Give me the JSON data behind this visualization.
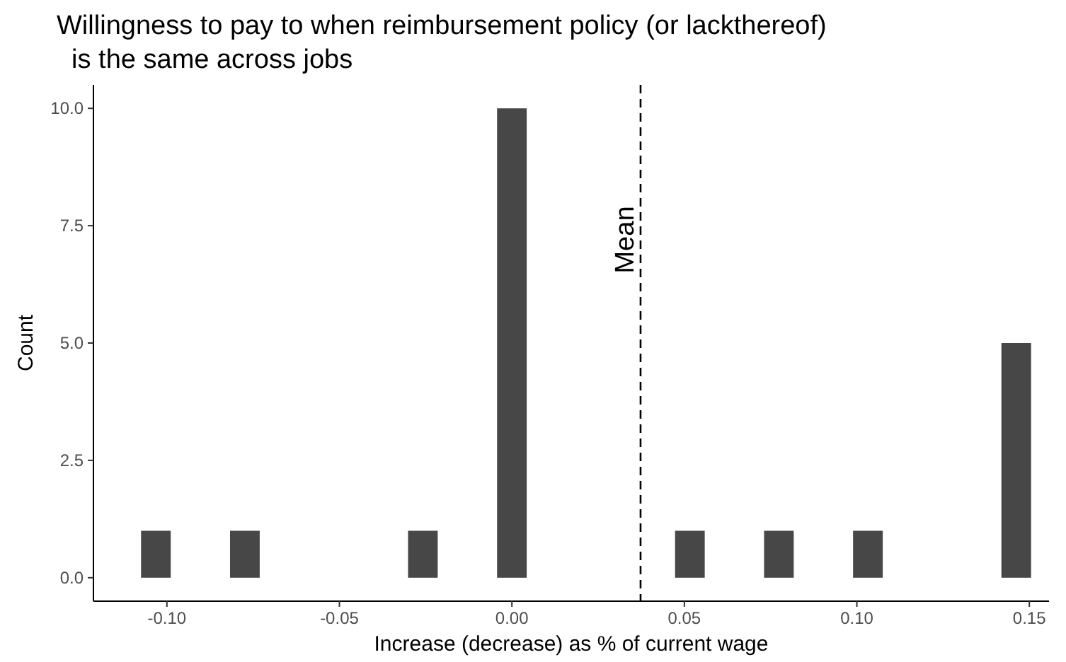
{
  "chart_data": {
    "type": "histogram",
    "title": "Willingness to pay to when reimbursement policy (or lackthereof)\n  is the same across jobs",
    "xlabel": "Increase (decrease) as % of current wage",
    "ylabel": "Count",
    "bins": [
      -0.1075,
      -0.0989,
      -0.0903,
      -0.0817,
      -0.0731,
      -0.0645,
      -0.0559,
      -0.0473,
      -0.0387,
      -0.0301,
      -0.0215,
      -0.0129,
      -0.0043,
      0.0043,
      0.0129,
      0.0215,
      0.0301,
      0.0387,
      0.0473,
      0.0559,
      0.0645,
      0.0731,
      0.0817,
      0.0903,
      0.0989,
      0.1075,
      0.1161,
      0.1247,
      0.1333,
      0.1419,
      0.1505
    ],
    "values": [
      1,
      0,
      0,
      1,
      0,
      0,
      0,
      0,
      0,
      1,
      0,
      0,
      10,
      0,
      0,
      0,
      0,
      0,
      1,
      0,
      0,
      1,
      0,
      0,
      1,
      0,
      0,
      0,
      0,
      5
    ],
    "color": "#474747",
    "xlim": [
      -0.1213,
      0.1557
    ],
    "xticks": [
      {
        "value": -0.1,
        "label": "-0.10"
      },
      {
        "value": -0.05,
        "label": "-0.05"
      },
      {
        "value": 0,
        "label": "0.00"
      },
      {
        "value": 0.05,
        "label": "0.05"
      },
      {
        "value": 0.1,
        "label": "0.10"
      },
      {
        "value": 0.15,
        "label": "0.15"
      }
    ],
    "ylim": [
      -0.5,
      10.5
    ],
    "yticks": [
      {
        "value": 0,
        "label": "0.0"
      },
      {
        "value": 2.5,
        "label": "2.5"
      },
      {
        "value": 5,
        "label": "5.0"
      },
      {
        "value": 7.5,
        "label": "7.5"
      },
      {
        "value": 10,
        "label": "10.0"
      }
    ],
    "ref_lines": [
      {
        "axis": "x",
        "value": 0.0373,
        "label": "Mean",
        "color": "#000000",
        "line_style": "dashed"
      }
    ],
    "grid": false
  }
}
